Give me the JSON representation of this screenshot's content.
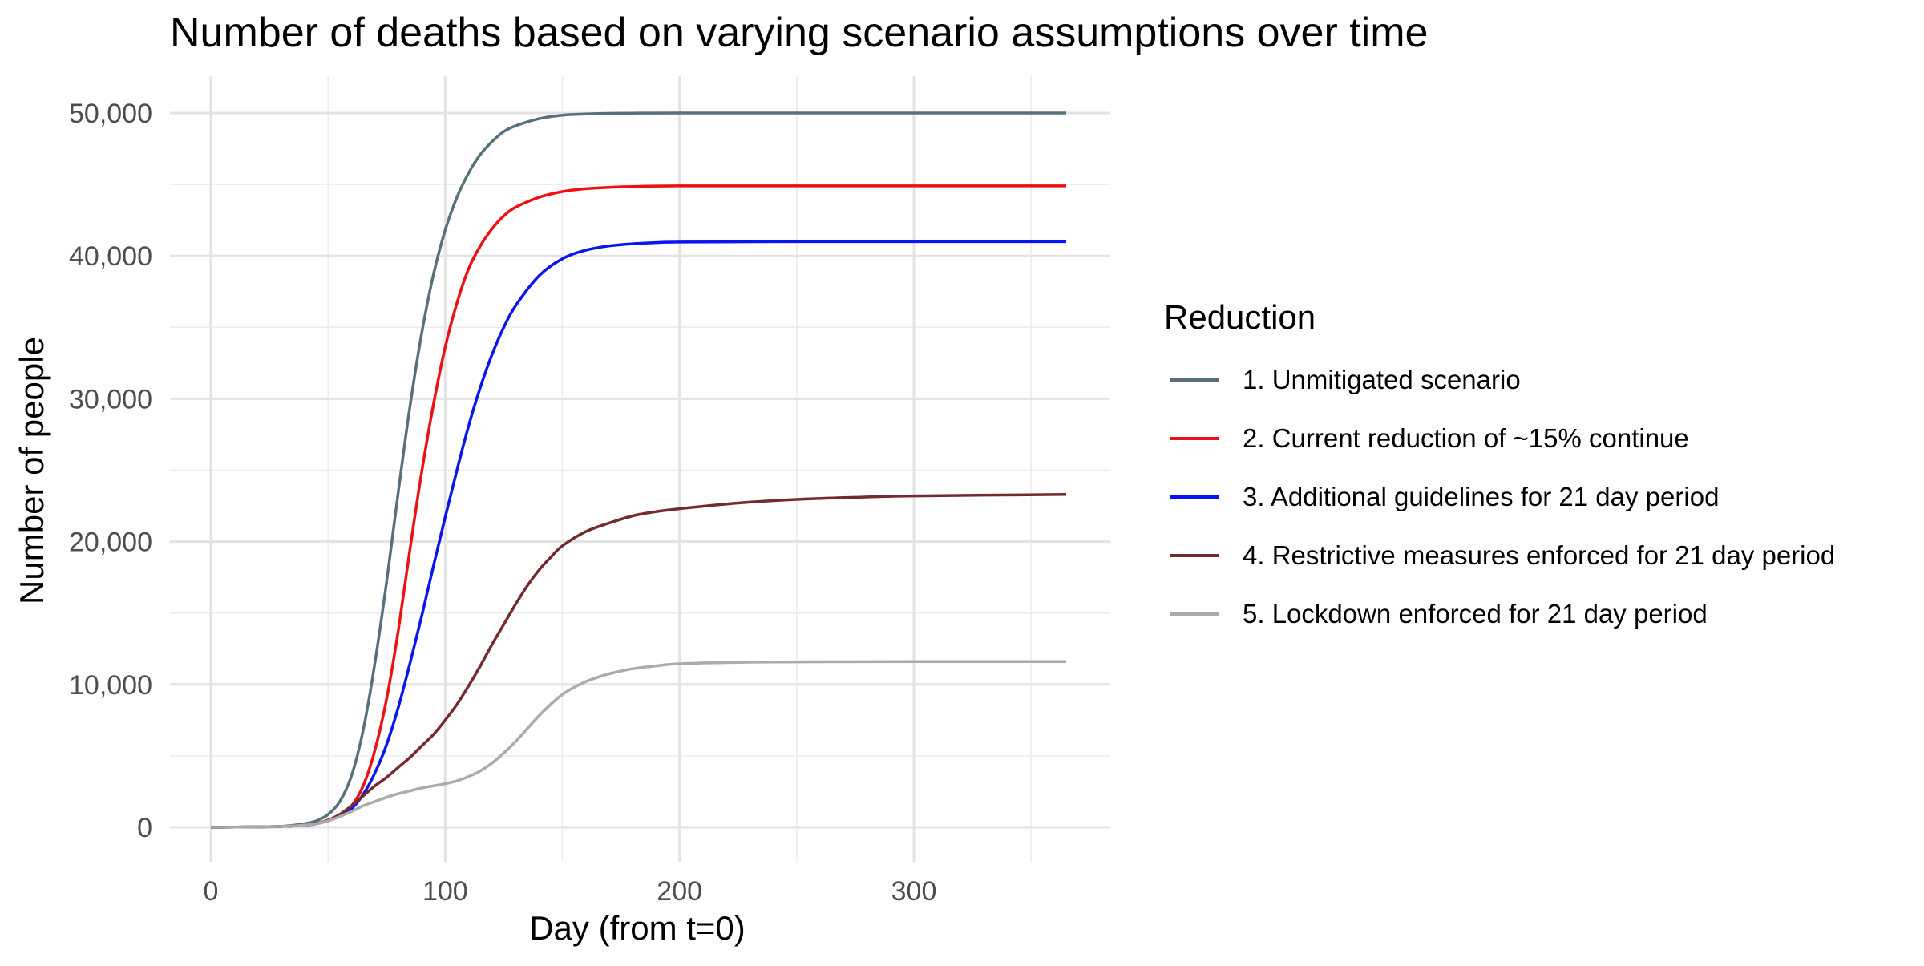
{
  "chart_data": {
    "type": "line",
    "title": "Number of deaths based on varying scenario assumptions over time",
    "xlabel": "Day (from t=0)",
    "ylabel": "Number of people",
    "xlim": [
      -8,
      382
    ],
    "ylim": [
      -2500,
      52500
    ],
    "x_ticks": [
      0,
      100,
      200,
      300
    ],
    "y_ticks": [
      0,
      10000,
      20000,
      30000,
      40000,
      50000
    ],
    "y_tick_labels": [
      "0",
      "10,000",
      "20,000",
      "30,000",
      "40,000",
      "50,000"
    ],
    "x_tick_labels": [
      "0",
      "100",
      "200",
      "300"
    ],
    "grid": true,
    "legend": {
      "title": "Reduction",
      "position": "right"
    },
    "series": [
      {
        "name": "1. Unmitigated scenario",
        "color": "#56717a",
        "x": [
          0,
          20,
          30,
          40,
          45,
          50,
          55,
          60,
          65,
          70,
          75,
          80,
          85,
          90,
          95,
          100,
          105,
          110,
          115,
          120,
          125,
          130,
          140,
          150,
          160,
          170,
          180,
          200,
          250,
          300,
          365
        ],
        "y": [
          0,
          30,
          60,
          250,
          450,
          900,
          1800,
          3600,
          6800,
          11500,
          17200,
          23500,
          29500,
          34600,
          38700,
          41800,
          44100,
          45800,
          47100,
          48000,
          48700,
          49100,
          49600,
          49850,
          49930,
          49970,
          49990,
          50000,
          50000,
          50000,
          50000
        ]
      },
      {
        "name": "2. Current reduction of ~15% continue",
        "color": "#ee1111",
        "x": [
          0,
          20,
          30,
          40,
          45,
          50,
          55,
          60,
          65,
          70,
          75,
          80,
          85,
          90,
          95,
          100,
          105,
          110,
          115,
          120,
          125,
          130,
          140,
          150,
          160,
          170,
          180,
          200,
          250,
          300,
          365
        ],
        "y": [
          0,
          30,
          60,
          150,
          250,
          500,
          850,
          1500,
          2900,
          5400,
          9000,
          13800,
          19500,
          24900,
          29600,
          33600,
          36700,
          39100,
          40700,
          41900,
          42800,
          43400,
          44100,
          44500,
          44700,
          44800,
          44850,
          44900,
          44900,
          44900,
          44900
        ]
      },
      {
        "name": "3. Additional guidelines for 21 day period",
        "color": "#0a14f0",
        "x": [
          0,
          20,
          30,
          40,
          45,
          50,
          55,
          60,
          65,
          70,
          75,
          80,
          85,
          90,
          95,
          100,
          105,
          110,
          115,
          120,
          125,
          130,
          140,
          150,
          160,
          170,
          180,
          190,
          200,
          250,
          300,
          365
        ],
        "y": [
          0,
          30,
          60,
          150,
          250,
          450,
          800,
          1300,
          2300,
          3800,
          5800,
          8400,
          11500,
          14800,
          18300,
          21700,
          25000,
          28100,
          30800,
          33100,
          35000,
          36500,
          38600,
          39800,
          40400,
          40700,
          40850,
          40930,
          40970,
          41000,
          41000,
          41000
        ]
      },
      {
        "name": "4. Restrictive measures enforced for 21 day period",
        "color": "#742a2f",
        "x": [
          0,
          20,
          30,
          40,
          45,
          50,
          55,
          60,
          65,
          70,
          75,
          80,
          85,
          90,
          95,
          100,
          105,
          110,
          115,
          120,
          125,
          130,
          135,
          140,
          145,
          150,
          160,
          170,
          180,
          190,
          200,
          225,
          250,
          275,
          300,
          365
        ],
        "y": [
          0,
          30,
          60,
          150,
          250,
          500,
          900,
          1500,
          2200,
          2900,
          3500,
          4200,
          4900,
          5700,
          6500,
          7500,
          8600,
          9900,
          11300,
          12800,
          14200,
          15600,
          16900,
          18000,
          18900,
          19700,
          20700,
          21300,
          21800,
          22100,
          22300,
          22700,
          22950,
          23100,
          23200,
          23300
        ]
      },
      {
        "name": "5. Lockdown enforced for 21 day period",
        "color": "#ababab",
        "x": [
          0,
          20,
          30,
          40,
          45,
          50,
          55,
          60,
          65,
          70,
          75,
          80,
          85,
          90,
          95,
          100,
          105,
          110,
          115,
          120,
          125,
          130,
          135,
          140,
          145,
          150,
          155,
          160,
          165,
          170,
          180,
          190,
          200,
          225,
          250,
          300,
          365
        ],
        "y": [
          0,
          30,
          60,
          150,
          250,
          450,
          750,
          1100,
          1500,
          1800,
          2100,
          2350,
          2550,
          2750,
          2900,
          3050,
          3250,
          3550,
          3950,
          4500,
          5200,
          6000,
          6900,
          7800,
          8600,
          9300,
          9800,
          10200,
          10500,
          10750,
          11100,
          11300,
          11450,
          11550,
          11580,
          11600,
          11600
        ]
      }
    ]
  }
}
